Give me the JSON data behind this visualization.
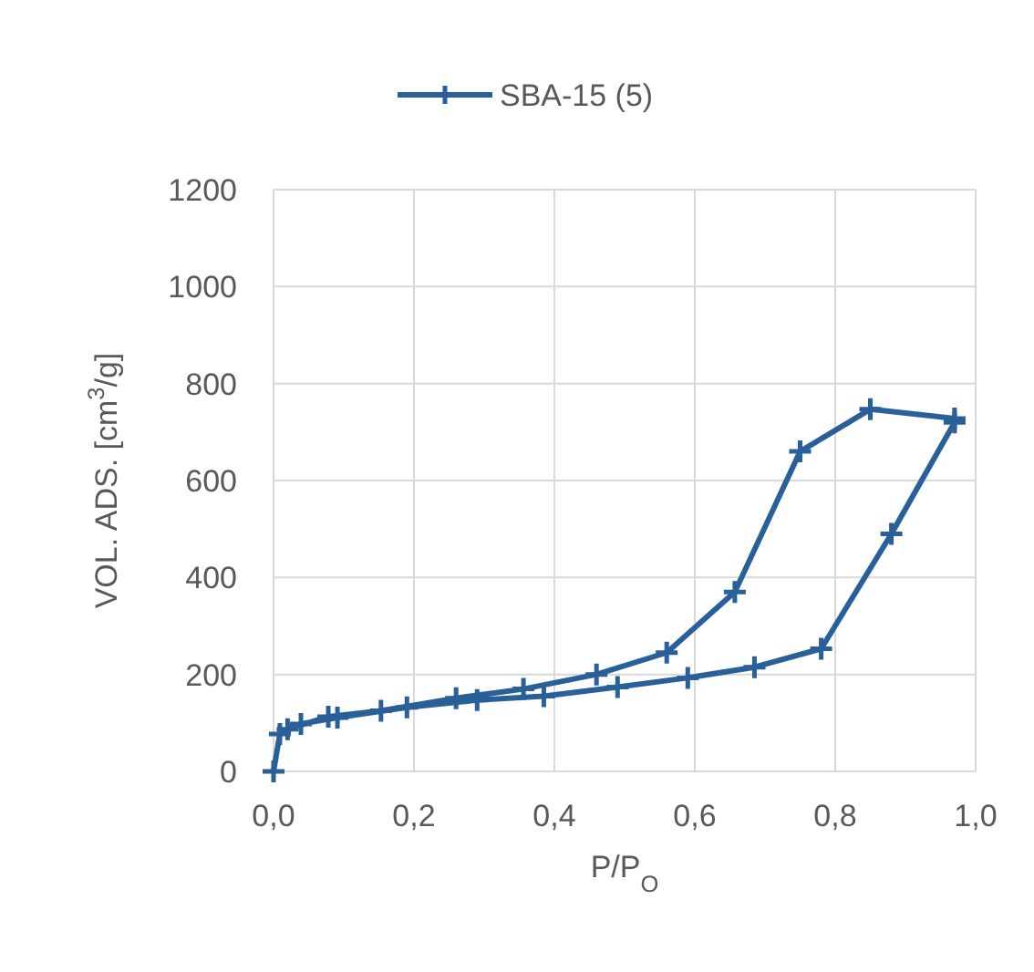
{
  "chart_data": {
    "type": "line",
    "xlabel": "P/P$_{O}$",
    "ylabel": "VOL. ADS. [cm$^{3}$/g]",
    "xlim": [
      0,
      1
    ],
    "ylim": [
      0,
      1200
    ],
    "xticks": [
      {
        "value": 0,
        "label": "0,0"
      },
      {
        "value": 0.2,
        "label": "0,2"
      },
      {
        "value": 0.4,
        "label": "0,4"
      },
      {
        "value": 0.6,
        "label": "0,6"
      },
      {
        "value": 0.8,
        "label": "0,8"
      },
      {
        "value": 1,
        "label": "1,0"
      }
    ],
    "yticks": [
      0,
      200,
      400,
      600,
      800,
      1000,
      1200
    ],
    "grid": true,
    "legend": "top",
    "marker": "cross",
    "line_style": "solid",
    "series": [
      {
        "name": "SBA-15 (5)",
        "color": "#2a6099",
        "x": [
          0,
          0.009,
          0.039,
          0.091,
          0.19,
          0.29,
          0.385,
          0.49,
          0.59,
          0.685,
          0.78,
          0.88,
          0.97,
          0.97,
          0.85,
          0.75,
          0.657,
          0.56,
          0.46,
          0.356,
          0.26,
          0.153,
          0.078,
          0.02
        ],
        "values": [
          0,
          77,
          98,
          111,
          132,
          147,
          155,
          174,
          193,
          215,
          253,
          490,
          720,
          728,
          747,
          660,
          370,
          245,
          200,
          170,
          151,
          125,
          113,
          87
        ]
      }
    ]
  }
}
